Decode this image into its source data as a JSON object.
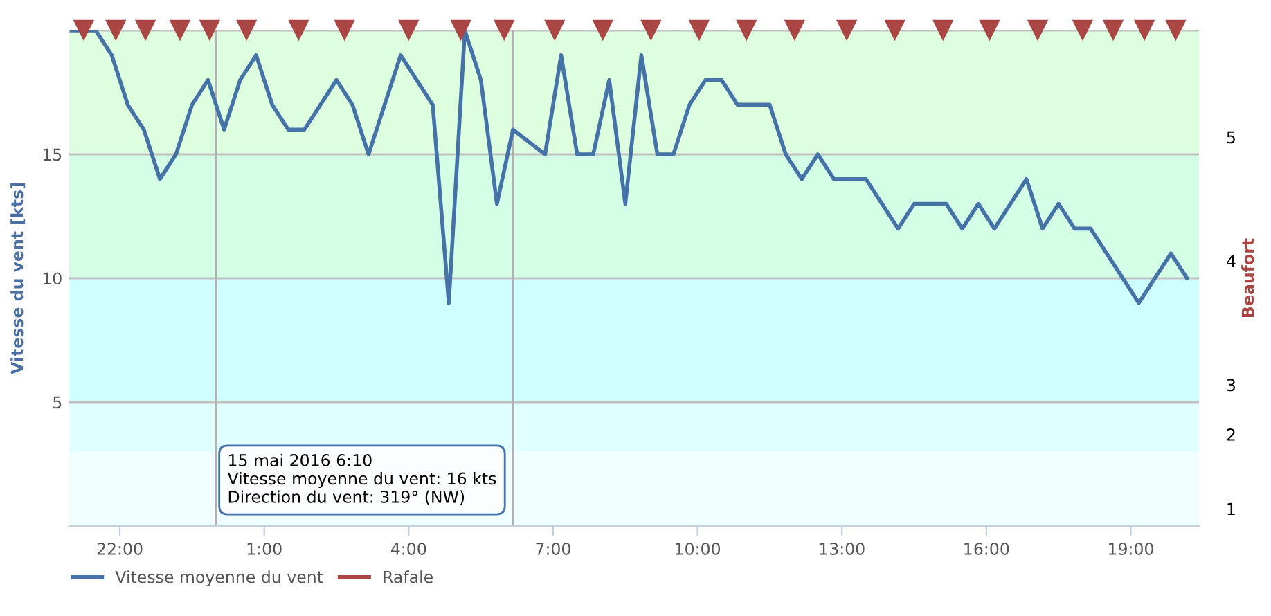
{
  "chart_data": {
    "type": "line",
    "ylabel": "Vitesse du vent [kts]",
    "y2label": "Beaufort",
    "xlim": [
      "2016-05-14T20:57",
      "2016-05-15T20:25"
    ],
    "xticks": [
      {
        "value": "2016-05-14T22:00",
        "label": "22:00"
      },
      {
        "value": "2016-05-15T01:00",
        "label": "1:00"
      },
      {
        "value": "2016-05-15T04:00",
        "label": "4:00"
      },
      {
        "value": "2016-05-15T07:00",
        "label": "7:00"
      },
      {
        "value": "2016-05-15T10:00",
        "label": "10:00"
      },
      {
        "value": "2016-05-15T13:00",
        "label": "13:00"
      },
      {
        "value": "2016-05-15T16:00",
        "label": "16:00"
      },
      {
        "value": "2016-05-15T19:00",
        "label": "19:00"
      }
    ],
    "ylim": [
      0,
      20
    ],
    "yticks": [
      5,
      10,
      15,
      {
        "value": 20,
        "label": null
      }
    ],
    "grid": "y",
    "legend": "bottom left",
    "series": [
      {
        "name": "Vitesse moyenne du vent",
        "color": "#4572a7",
        "marker": "none",
        "x": [
          "2016-05-14T21:00",
          "2016-05-14T21:30",
          "2016-05-14T21:50",
          "2016-05-14T22:10",
          "2016-05-14T22:30",
          "2016-05-14T22:50",
          "2016-05-14T23:10",
          "2016-05-14T23:30",
          "2016-05-14T23:50",
          "2016-05-15T00:10",
          "2016-05-15T00:30",
          "2016-05-15T00:50",
          "2016-05-15T01:10",
          "2016-05-15T01:30",
          "2016-05-15T01:50",
          "2016-05-15T02:10",
          "2016-05-15T02:30",
          "2016-05-15T02:50",
          "2016-05-15T03:10",
          "2016-05-15T03:50",
          "2016-05-15T04:30",
          "2016-05-15T04:50",
          "2016-05-15T05:10",
          "2016-05-15T05:30",
          "2016-05-15T05:50",
          "2016-05-15T06:10",
          "2016-05-15T06:50",
          "2016-05-15T07:10",
          "2016-05-15T07:30",
          "2016-05-15T07:50",
          "2016-05-15T08:10",
          "2016-05-15T08:30",
          "2016-05-15T08:50",
          "2016-05-15T09:10",
          "2016-05-15T09:30",
          "2016-05-15T09:50",
          "2016-05-15T10:10",
          "2016-05-15T10:30",
          "2016-05-15T10:50",
          "2016-05-15T11:10",
          "2016-05-15T11:30",
          "2016-05-15T11:50",
          "2016-05-15T12:10",
          "2016-05-15T12:30",
          "2016-05-15T12:50",
          "2016-05-15T13:10",
          "2016-05-15T13:30",
          "2016-05-15T14:10",
          "2016-05-15T14:30",
          "2016-05-15T14:50",
          "2016-05-15T15:10",
          "2016-05-15T15:30",
          "2016-05-15T15:50",
          "2016-05-15T16:10",
          "2016-05-15T16:30",
          "2016-05-15T16:50",
          "2016-05-15T17:10",
          "2016-05-15T17:30",
          "2016-05-15T17:50",
          "2016-05-15T18:10",
          "2016-05-15T18:30",
          "2016-05-15T18:50",
          "2016-05-15T19:10",
          "2016-05-15T19:50",
          "2016-05-15T20:10"
        ],
        "values": [
          20,
          20,
          19,
          17,
          16,
          14,
          15,
          17,
          18,
          16,
          18,
          19,
          17,
          16,
          16,
          17,
          18,
          17,
          15,
          19,
          17,
          9,
          20,
          18,
          13,
          16,
          15,
          19,
          15,
          15,
          18,
          13,
          19,
          15,
          15,
          17,
          18,
          18,
          17,
          17,
          17,
          15,
          14,
          15,
          14,
          14,
          14,
          12,
          13,
          13,
          13,
          12,
          13,
          12,
          13,
          14,
          12,
          13,
          12,
          12,
          11,
          10,
          9,
          11,
          10
        ]
      },
      {
        "name": "Rafale",
        "color": "#aa4643",
        "type": "scatter",
        "marker": "triangle",
        "x": [
          "2016-05-14T21:15",
          "2016-05-14T21:55",
          "2016-05-14T22:32",
          "2016-05-14T23:15",
          "2016-05-14T23:52",
          "2016-05-15T00:38",
          "2016-05-15T01:43",
          "2016-05-15T02:40",
          "2016-05-15T04:00",
          "2016-05-15T05:05",
          "2016-05-15T05:59",
          "2016-05-15T07:02",
          "2016-05-15T08:02",
          "2016-05-15T09:02",
          "2016-05-15T10:02",
          "2016-05-15T11:01",
          "2016-05-15T12:01",
          "2016-05-15T13:06",
          "2016-05-15T14:06",
          "2016-05-15T15:06",
          "2016-05-15T16:04",
          "2016-05-15T17:04",
          "2016-05-15T18:00",
          "2016-05-15T18:38",
          "2016-05-15T19:17",
          "2016-05-15T19:56"
        ],
        "values": [
          20,
          20,
          20,
          20,
          20,
          20,
          20,
          20,
          20,
          20,
          20,
          20,
          20,
          20,
          20,
          20,
          20,
          20,
          20,
          20,
          20,
          20,
          20,
          20,
          20,
          20
        ]
      }
    ],
    "bands": [
      {
        "axis": "y",
        "from": 0,
        "to": 3,
        "color": "#f0ffff",
        "label": "1"
      },
      {
        "axis": "y",
        "from": 3,
        "to": 5,
        "color": "#e0ffff",
        "label": "2"
      },
      {
        "axis": "y",
        "from": 5,
        "to": 10,
        "color": "#d0ffff",
        "label": "3"
      },
      {
        "axis": "y",
        "from": 10,
        "to": 15,
        "color": "#d4ffe6",
        "label": "4"
      },
      {
        "axis": "y",
        "from": 15,
        "to": 20,
        "color": "#ddfedf",
        "label": "5"
      }
    ],
    "ref_lines": [
      {
        "axis": "x",
        "value": "2016-05-15T00:00",
        "color": "#b0b0b0"
      },
      {
        "axis": "x",
        "value": "2016-05-15T06:10",
        "color": "#b0b0b0"
      }
    ],
    "annotations": [
      "15 mai 2016 6:10\nVitesse moyenne du vent: 16 kts\nDirection du vent: 319° (NW)"
    ]
  }
}
